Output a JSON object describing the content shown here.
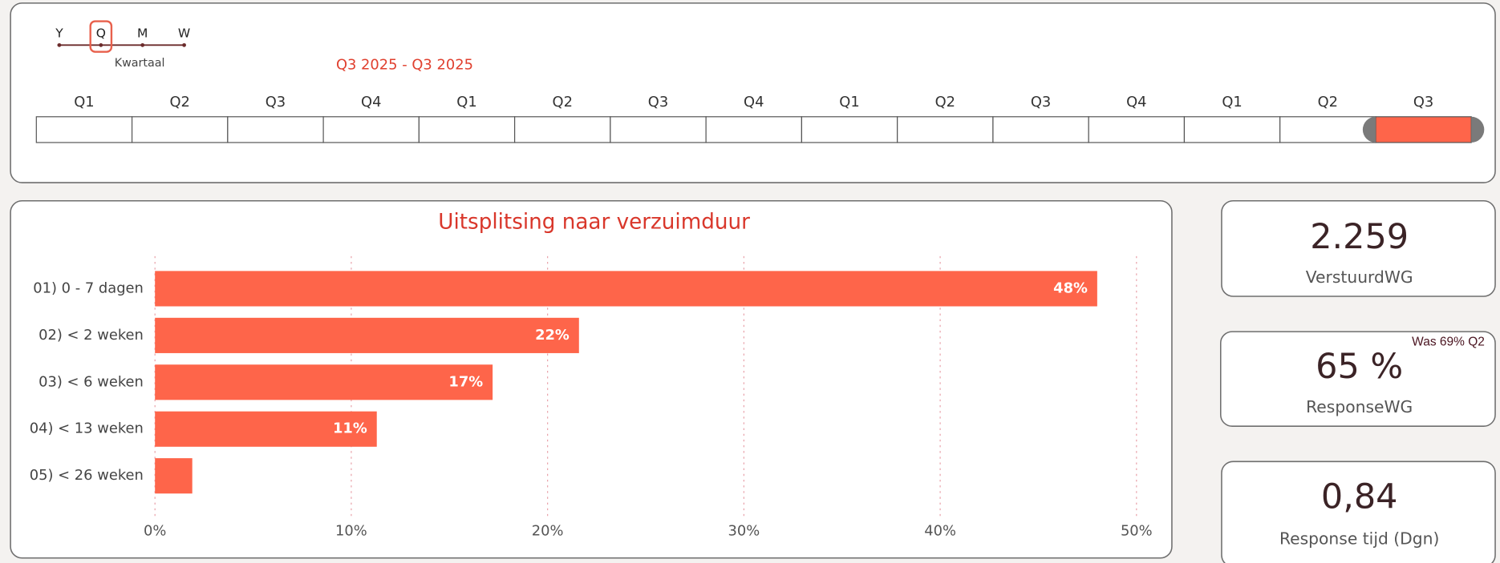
{
  "slicer": {
    "options": [
      "Y",
      "Q",
      "M",
      "W"
    ],
    "active": "Q",
    "label": "Kwartaal"
  },
  "timeline": {
    "range": "Q3 2025 - Q3 2025",
    "cells": [
      "Q1",
      "Q2",
      "Q3",
      "Q4",
      "Q1",
      "Q2",
      "Q3",
      "Q4",
      "Q1",
      "Q2",
      "Q3",
      "Q4",
      "Q1",
      "Q2",
      "Q3"
    ],
    "selected": 14
  },
  "chart_data": {
    "type": "hbar",
    "title": "Uitsplitsing naar verzuimduur",
    "categories": [
      "01) 0 - 7 dagen",
      "02) < 2 weken",
      "03) < 6 weken",
      "04) < 13 weken",
      "05) < 26 weken"
    ],
    "values": [
      48,
      21.6,
      17.2,
      11.3,
      1.9
    ],
    "value_labels": [
      "48%",
      "22%",
      "17%",
      "11%",
      null
    ],
    "color": "#fe654a",
    "xlim": [
      0,
      50
    ],
    "xticks": [
      {
        "value": 0,
        "label": "0%"
      },
      {
        "value": 10,
        "label": "10%"
      },
      {
        "value": 20,
        "label": "20%"
      },
      {
        "value": 30,
        "label": "30%"
      },
      {
        "value": 40,
        "label": "40%"
      },
      {
        "value": 50,
        "label": "50%"
      }
    ],
    "grid": true
  },
  "cards": [
    {
      "value": "2.259",
      "label": "VerstuurdWG"
    },
    {
      "value": "65 %",
      "label": "ResponseWG",
      "note": "Was 69% Q2"
    },
    {
      "value": "0,84",
      "label": "Response tijd (Dgn)"
    }
  ]
}
